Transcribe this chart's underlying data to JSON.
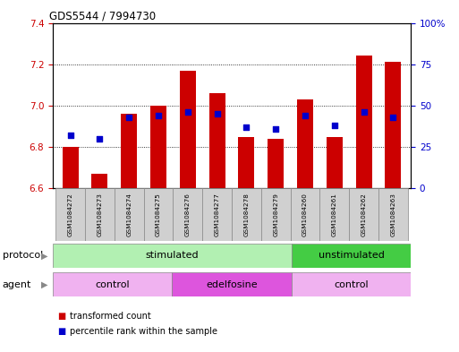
{
  "title": "GDS5544 / 7994730",
  "samples": [
    "GSM1084272",
    "GSM1084273",
    "GSM1084274",
    "GSM1084275",
    "GSM1084276",
    "GSM1084277",
    "GSM1084278",
    "GSM1084279",
    "GSM1084260",
    "GSM1084261",
    "GSM1084262",
    "GSM1084263"
  ],
  "bar_values": [
    6.8,
    6.67,
    6.96,
    7.0,
    7.17,
    7.06,
    6.85,
    6.84,
    7.03,
    6.85,
    7.24,
    7.21
  ],
  "bar_base": 6.6,
  "percentile_values": [
    32,
    30,
    43,
    44,
    46,
    45,
    37,
    36,
    44,
    38,
    46,
    43
  ],
  "ylim_left": [
    6.6,
    7.4
  ],
  "ylim_right": [
    0,
    100
  ],
  "yticks_left": [
    6.6,
    6.8,
    7.0,
    7.2,
    7.4
  ],
  "ytick_labels_right": [
    "0",
    "25",
    "50",
    "75",
    "100%"
  ],
  "bar_color": "#cc0000",
  "dot_color": "#0000cc",
  "protocol_labels": [
    {
      "text": "stimulated",
      "start": 0,
      "end": 7,
      "color": "#b2f0b2"
    },
    {
      "text": "unstimulated",
      "start": 8,
      "end": 11,
      "color": "#44cc44"
    }
  ],
  "agent_labels": [
    {
      "text": "control",
      "start": 0,
      "end": 3,
      "color": "#f0b2f0"
    },
    {
      "text": "edelfosine",
      "start": 4,
      "end": 7,
      "color": "#dd55dd"
    },
    {
      "text": "control",
      "start": 8,
      "end": 11,
      "color": "#f0b2f0"
    }
  ],
  "legend_items": [
    {
      "label": "transformed count",
      "color": "#cc0000"
    },
    {
      "label": "percentile rank within the sample",
      "color": "#0000cc"
    }
  ]
}
